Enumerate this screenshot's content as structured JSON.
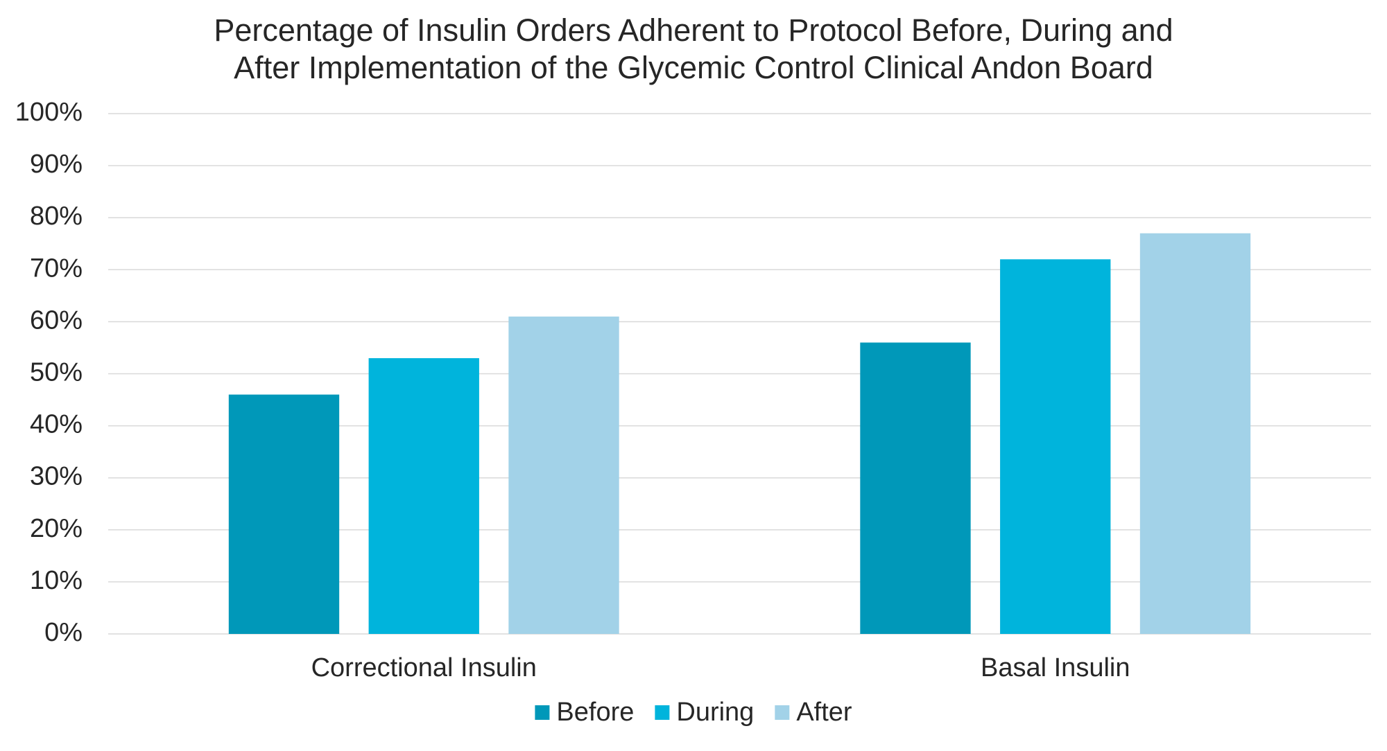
{
  "chart_data": {
    "type": "bar",
    "title": [
      "Percentage of Insulin Orders Adherent to Protocol Before, During and",
      "After Implementation of the Glycemic Control Clinical Andon Board"
    ],
    "categories": [
      "Correctional Insulin",
      "Basal Insulin"
    ],
    "series": [
      {
        "name": "Before",
        "color": "#0098b9",
        "values": [
          46,
          56
        ]
      },
      {
        "name": "During",
        "color": "#00b4dc",
        "values": [
          53,
          72
        ]
      },
      {
        "name": "After",
        "color": "#a2d2e8",
        "values": [
          61,
          77
        ]
      }
    ],
    "ylim": [
      0,
      100
    ],
    "yticks": [
      {
        "value": 0,
        "label": "0%"
      },
      {
        "value": 10,
        "label": "10%"
      },
      {
        "value": 20,
        "label": "20%"
      },
      {
        "value": 30,
        "label": "30%"
      },
      {
        "value": 40,
        "label": "40%"
      },
      {
        "value": 50,
        "label": "50%"
      },
      {
        "value": 60,
        "label": "60%"
      },
      {
        "value": 70,
        "label": "70%"
      },
      {
        "value": 80,
        "label": "80%"
      },
      {
        "value": 90,
        "label": "90%"
      },
      {
        "value": 100,
        "label": "100%"
      }
    ],
    "grid": true,
    "legend": "bottom"
  }
}
